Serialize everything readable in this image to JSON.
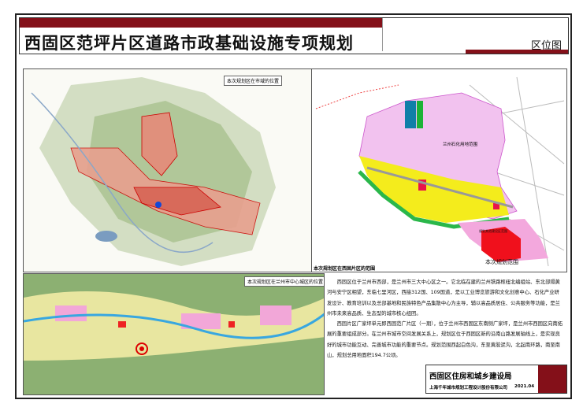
{
  "header": {
    "title": "西固区范坪片区道路市政基础设施专项规划",
    "sheet_name": "区位图",
    "accent_color": "#841019"
  },
  "maps": {
    "city_map": {
      "label": "本次规划区在市域的位置"
    },
    "district_map": {
      "label": "本次规划区在西固片区的范围",
      "petrochem_label": "兰州石化用地范围",
      "other_label": "规划其他建设区范围",
      "plan_label": "本次规划范围"
    },
    "center_map": {
      "label": "本次规划区在兰州市中心城区的位置"
    }
  },
  "description": {
    "paragraphs": [
      "西固区位于兰州市西部，是兰州市三大中心区之一。它北临在建的兰州铁路枢纽北编组站、东北部隔黄河与安宁区相望，东临七里河区，西接312国、109国道，是以工业博览旅游和文化创意中心、石化产业研发设计、教育培训以及总部基地和民族特色产品集散中心为主导，辅以高品质居住、公共服务等功能，是兰州市未来高品质、生态型的城市核心组团。",
      "西固片区广家坪单元即西固范广片区（一期），位于兰州市西固区东南侧广家坪，是兰州市西固区向南拓展的重要组成部分。在兰州市城市空间发展关系上，规划区位于西固区新的沿南山路发展轴线上，是实现良好的城市功能互动、完善城市功能的重要节点。规划范围西起白色沟，东至黄胶泥沟，北起南环路，南至南山，规划总用地面积194.7公顷。"
    ]
  },
  "footer": {
    "organization": "西固区住房和城乡建设局",
    "company": "上海千年城市规划工程设计股份有限公司",
    "date": "2021.04"
  }
}
